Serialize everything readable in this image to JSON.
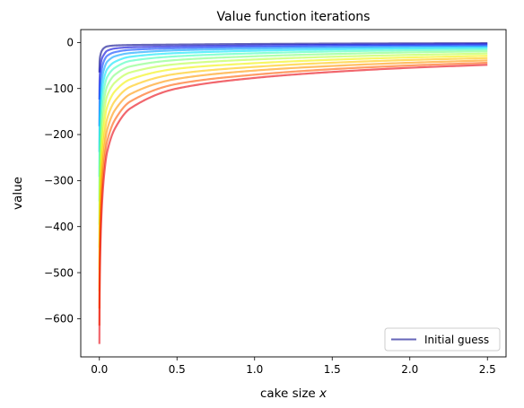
{
  "chart_data": {
    "type": "line",
    "title": "Value function iterations",
    "xlabel_main": "cake size ",
    "xlabel_var": "x",
    "ylabel": "value",
    "xlim": [
      -0.12,
      2.62
    ],
    "ylim": [
      -683,
      28
    ],
    "xticks": [
      0.0,
      0.5,
      1.0,
      1.5,
      2.0,
      2.5
    ],
    "xtick_labels": [
      "0.0",
      "0.5",
      "1.0",
      "1.5",
      "2.0",
      "2.5"
    ],
    "yticks": [
      0,
      -100,
      -200,
      -300,
      -400,
      -500,
      -600
    ],
    "ytick_labels": [
      "0",
      "−100",
      "−200",
      "−300",
      "−400",
      "−500",
      "−600"
    ],
    "grid": false,
    "legend": {
      "position": "lower-right",
      "label": "Initial guess",
      "color": "#00008b"
    },
    "x_range": [
      0.0001,
      2.5
    ],
    "series": [
      {
        "name": "Initial guess",
        "color": "#00008b",
        "x": [
          0.0001,
          0.0016,
          0.0063,
          0.0156,
          0.03,
          0.05,
          0.1,
          0.2,
          0.5,
          1.0,
          1.5,
          2.0,
          2.5
        ],
        "values": [
          -65,
          -40,
          -28,
          -18,
          -12,
          -8.5,
          -6.5,
          -5.5,
          -4.5,
          -3.2,
          -2.4,
          -1.9,
          -1.5
        ]
      },
      {
        "name": "",
        "color": "#0000d8",
        "x": [
          0.0001,
          0.0016,
          0.0063,
          0.0156,
          0.03,
          0.05,
          0.1,
          0.2,
          0.5,
          1.0,
          1.5,
          2.0,
          2.5
        ],
        "values": [
          -124,
          -78,
          -55,
          -36,
          -26,
          -18,
          -13,
          -10.5,
          -8.5,
          -6.5,
          -5.2,
          -4.4,
          -3.8
        ]
      },
      {
        "name": "",
        "color": "#0040ff",
        "x": [
          0.0001,
          0.0016,
          0.0063,
          0.0156,
          0.03,
          0.05,
          0.1,
          0.2,
          0.5,
          1.0,
          1.5,
          2.0,
          2.5
        ],
        "values": [
          -182,
          -120,
          -85,
          -58,
          -40,
          -29,
          -21,
          -16,
          -12.5,
          -9.8,
          -8.1,
          -7.0,
          -6.2
        ]
      },
      {
        "name": "",
        "color": "#00a0ff",
        "x": [
          0.0001,
          0.0016,
          0.0063,
          0.0156,
          0.03,
          0.05,
          0.1,
          0.2,
          0.5,
          1.0,
          1.5,
          2.0,
          2.5
        ],
        "values": [
          -238,
          -165,
          -118,
          -82,
          -58,
          -42,
          -30,
          -23,
          -17,
          -13.5,
          -11.3,
          -9.9,
          -8.9
        ]
      },
      {
        "name": "",
        "color": "#00e4f8",
        "x": [
          0.0001,
          0.0016,
          0.0063,
          0.0156,
          0.03,
          0.05,
          0.1,
          0.2,
          0.5,
          1.0,
          1.5,
          2.0,
          2.5
        ],
        "values": [
          -292,
          -210,
          -152,
          -108,
          -78,
          -58,
          -42,
          -31,
          -23,
          -18,
          -15,
          -13,
          -11.8
        ]
      },
      {
        "name": "",
        "color": "#40ffb8",
        "x": [
          0.0001,
          0.0016,
          0.0063,
          0.0156,
          0.03,
          0.05,
          0.1,
          0.2,
          0.5,
          1.0,
          1.5,
          2.0,
          2.5
        ],
        "values": [
          -345,
          -255,
          -190,
          -136,
          -100,
          -75,
          -55,
          -40,
          -30,
          -23.5,
          -19.5,
          -17,
          -15.2
        ]
      },
      {
        "name": "",
        "color": "#7cff7a",
        "x": [
          0.0001,
          0.0016,
          0.0063,
          0.0156,
          0.03,
          0.05,
          0.1,
          0.2,
          0.5,
          1.0,
          1.5,
          2.0,
          2.5
        ],
        "values": [
          -396,
          -300,
          -228,
          -166,
          -124,
          -95,
          -70,
          -52,
          -38,
          -30,
          -25,
          -21.5,
          -19.2
        ]
      },
      {
        "name": "",
        "color": "#b8ff3e",
        "x": [
          0.0001,
          0.0016,
          0.0063,
          0.0156,
          0.03,
          0.05,
          0.1,
          0.2,
          0.5,
          1.0,
          1.5,
          2.0,
          2.5
        ],
        "values": [
          -446,
          -345,
          -266,
          -198,
          -150,
          -116,
          -87,
          -65,
          -47,
          -37,
          -31,
          -27,
          -24
        ]
      },
      {
        "name": "",
        "color": "#f2f200",
        "x": [
          0.0001,
          0.0016,
          0.0063,
          0.0156,
          0.03,
          0.05,
          0.1,
          0.2,
          0.5,
          1.0,
          1.5,
          2.0,
          2.5
        ],
        "values": [
          -494,
          -390,
          -305,
          -232,
          -178,
          -140,
          -106,
          -80,
          -57,
          -45,
          -37.5,
          -32.5,
          -29
        ]
      },
      {
        "name": "",
        "color": "#ffc400",
        "x": [
          0.0001,
          0.0016,
          0.0063,
          0.0156,
          0.03,
          0.05,
          0.1,
          0.2,
          0.5,
          1.0,
          1.5,
          2.0,
          2.5
        ],
        "values": [
          -540,
          -432,
          -344,
          -266,
          -208,
          -166,
          -127,
          -96,
          -68,
          -53,
          -44,
          -38,
          -34
        ]
      },
      {
        "name": "",
        "color": "#ff9400",
        "x": [
          0.0001,
          0.0016,
          0.0063,
          0.0156,
          0.03,
          0.05,
          0.1,
          0.2,
          0.5,
          1.0,
          1.5,
          2.0,
          2.5
        ],
        "values": [
          -578,
          -472,
          -380,
          -298,
          -236,
          -190,
          -147,
          -112,
          -79,
          -61,
          -51,
          -44,
          -39
        ]
      },
      {
        "name": "",
        "color": "#ff5a00",
        "x": [
          0.0001,
          0.0016,
          0.0063,
          0.0156,
          0.03,
          0.05,
          0.1,
          0.2,
          0.5,
          1.0,
          1.5,
          2.0,
          2.5
        ],
        "values": [
          -615,
          -508,
          -414,
          -330,
          -264,
          -215,
          -168,
          -128,
          -90,
          -70,
          -58,
          -50,
          -44
        ]
      },
      {
        "name": "",
        "color": "#e8000b",
        "x": [
          0.0001,
          0.0016,
          0.0063,
          0.0156,
          0.03,
          0.05,
          0.1,
          0.2,
          0.5,
          1.0,
          1.5,
          2.0,
          2.5
        ],
        "values": [
          -655,
          -545,
          -448,
          -360,
          -290,
          -238,
          -187,
          -143,
          -100,
          -77,
          -64,
          -55,
          -48.5
        ]
      }
    ]
  }
}
